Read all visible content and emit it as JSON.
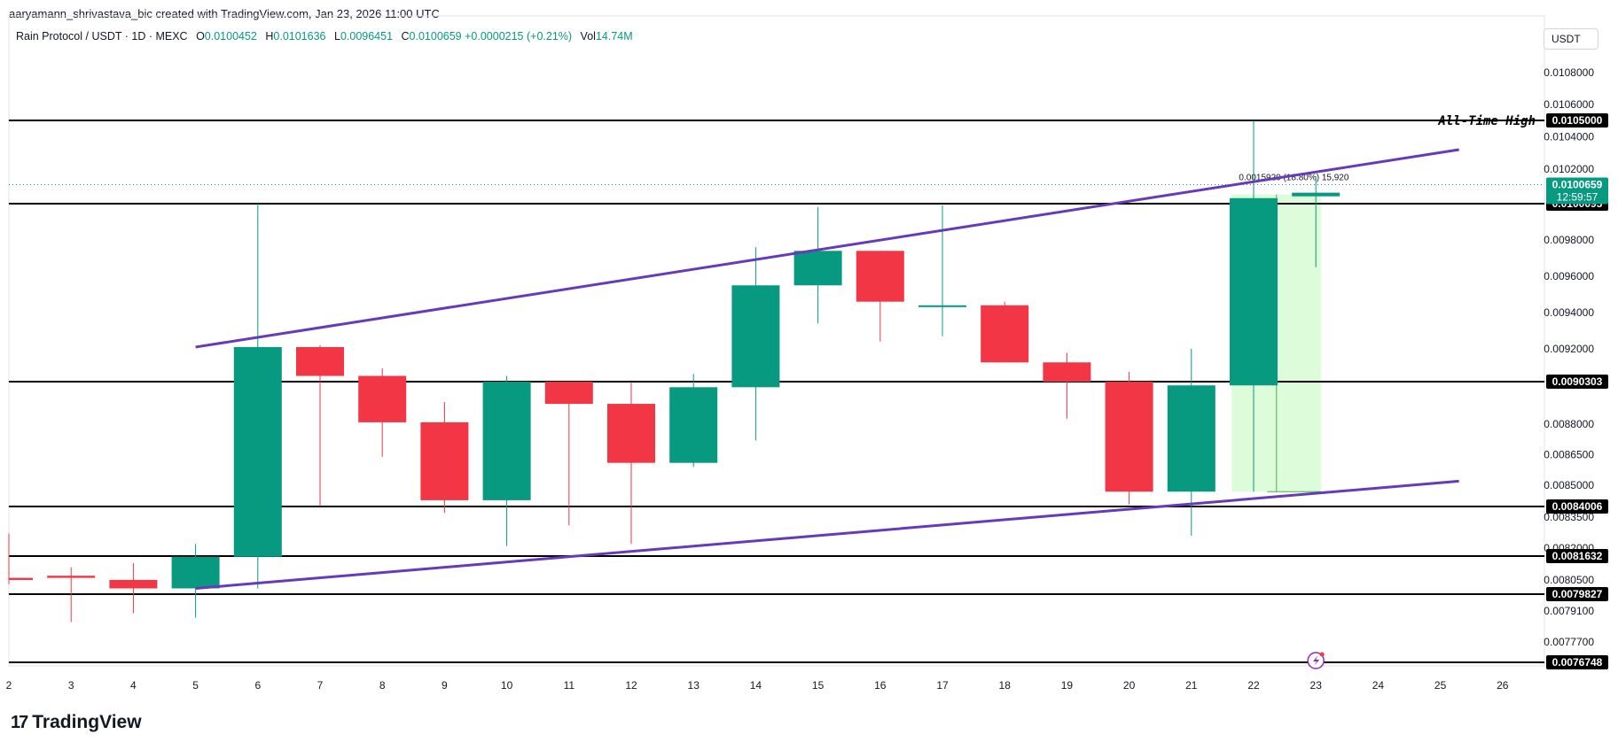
{
  "credit": "aaryamann_shrivastava_bic created with TradingView.com, Jan 23, 2026 11:00 UTC",
  "symbol": "Rain Protocol / USDT · 1D · MEXC",
  "ohlc": {
    "o_label": "O",
    "o": "0.0100452",
    "h_label": "H",
    "h": "0.0101636",
    "l_label": "L",
    "l": "0.0096451",
    "c_label": "C",
    "c": "0.0100659",
    "change": "+0.0000215 (+0.21%)",
    "vol_label": "Vol",
    "vol": "14.74M"
  },
  "currency": "USDT",
  "footer_brand": "TradingView",
  "colors": {
    "up": "#089981",
    "down": "#f23645",
    "channel": "#673ab7",
    "measure": "#d6fcd4"
  },
  "chart_data": {
    "type": "candlestick",
    "x_ticks": [
      "2",
      "3",
      "4",
      "5",
      "6",
      "7",
      "8",
      "9",
      "10",
      "11",
      "12",
      "13",
      "14",
      "15",
      "16",
      "17",
      "18",
      "19",
      "20",
      "21",
      "22",
      "23",
      "24",
      "25",
      "26"
    ],
    "y_ticks": [
      "0.0108000",
      "0.0106000",
      "0.0104000",
      "0.0102000",
      "0.0098000",
      "0.0096000",
      "0.0094000",
      "0.0092000",
      "0.0088000",
      "0.0086500",
      "0.0085000",
      "0.0083500",
      "0.0082000",
      "0.0080500",
      "0.0079100",
      "0.0077700"
    ],
    "candles": [
      {
        "d": 2,
        "o": 0.00806,
        "h": 0.00827,
        "l": 0.00803,
        "c": 0.00805
      },
      {
        "d": 3,
        "o": 0.00807,
        "h": 0.00811,
        "l": 0.00786,
        "c": 0.00806
      },
      {
        "d": 4,
        "o": 0.00805,
        "h": 0.00813,
        "l": 0.0079,
        "c": 0.00801
      },
      {
        "d": 5,
        "o": 0.00801,
        "h": 0.00822,
        "l": 0.00788,
        "c": 0.00816
      },
      {
        "d": 6,
        "o": 0.00816,
        "h": 0.01001,
        "l": 0.00801,
        "c": 0.00921
      },
      {
        "d": 7,
        "o": 0.00921,
        "h": 0.00922,
        "l": 0.0084,
        "c": 0.00906
      },
      {
        "d": 8,
        "o": 0.00906,
        "h": 0.0091,
        "l": 0.00864,
        "c": 0.00881
      },
      {
        "d": 9,
        "o": 0.00881,
        "h": 0.00892,
        "l": 0.00837,
        "c": 0.00843
      },
      {
        "d": 10,
        "o": 0.00843,
        "h": 0.00906,
        "l": 0.00821,
        "c": 0.00903
      },
      {
        "d": 11,
        "o": 0.00903,
        "h": 0.00903,
        "l": 0.00831,
        "c": 0.00891
      },
      {
        "d": 12,
        "o": 0.00891,
        "h": 0.00903,
        "l": 0.00822,
        "c": 0.00861
      },
      {
        "d": 13,
        "o": 0.00861,
        "h": 0.00907,
        "l": 0.00859,
        "c": 0.009
      },
      {
        "d": 14,
        "o": 0.009,
        "h": 0.00976,
        "l": 0.00872,
        "c": 0.00955
      },
      {
        "d": 15,
        "o": 0.00955,
        "h": 0.00999,
        "l": 0.00934,
        "c": 0.00974
      },
      {
        "d": 16,
        "o": 0.00974,
        "h": 0.00974,
        "l": 0.00924,
        "c": 0.00946
      },
      {
        "d": 17,
        "o": 0.00944,
        "h": 0.01,
        "l": 0.00927,
        "c": 0.00944
      },
      {
        "d": 18,
        "o": 0.00944,
        "h": 0.00946,
        "l": 0.00913,
        "c": 0.00913
      },
      {
        "d": 19,
        "o": 0.00913,
        "h": 0.00918,
        "l": 0.00883,
        "c": 0.00903
      },
      {
        "d": 20,
        "o": 0.00903,
        "h": 0.00908,
        "l": 0.00841,
        "c": 0.00847
      },
      {
        "d": 21,
        "o": 0.00847,
        "h": 0.0092,
        "l": 0.00826,
        "c": 0.00901
      },
      {
        "d": 22,
        "o": 0.00901,
        "h": 0.0105,
        "l": 0.00847,
        "c": 0.01004
      },
      {
        "d": 23,
        "o": 0.01005,
        "h": 0.01016,
        "l": 0.00965,
        "c": 0.01007
      }
    ],
    "levels": [
      {
        "price": 0.0105,
        "label": "0.0105000",
        "note": "All-Time High"
      },
      {
        "price": 0.0100095,
        "label": "0.0100095"
      },
      {
        "price": 0.0090303,
        "label": "0.0090303"
      },
      {
        "price": 0.0084006,
        "label": "0.0084006"
      },
      {
        "price": 0.0081632,
        "label": "0.0081632"
      },
      {
        "price": 0.0079827,
        "label": "0.0079827"
      },
      {
        "price": 0.0076748,
        "label": "0.0076748"
      }
    ],
    "current": {
      "price": 0.0100659,
      "label": "0.0100659",
      "countdown": "12:59:57"
    },
    "channel": {
      "upper": [
        {
          "d": 5,
          "p": 0.00921
        },
        {
          "d": 25.3,
          "p": 0.01032
        }
      ],
      "lower": [
        {
          "d": 5,
          "p": 0.00801
        },
        {
          "d": 25.3,
          "p": 0.00852
        }
      ]
    },
    "measure": {
      "d_from": 21.65,
      "d_to": 23.0,
      "p_from": 0.00847,
      "p_to": 0.01006,
      "label": "0.0015920 (18.80%) 15,920"
    }
  }
}
